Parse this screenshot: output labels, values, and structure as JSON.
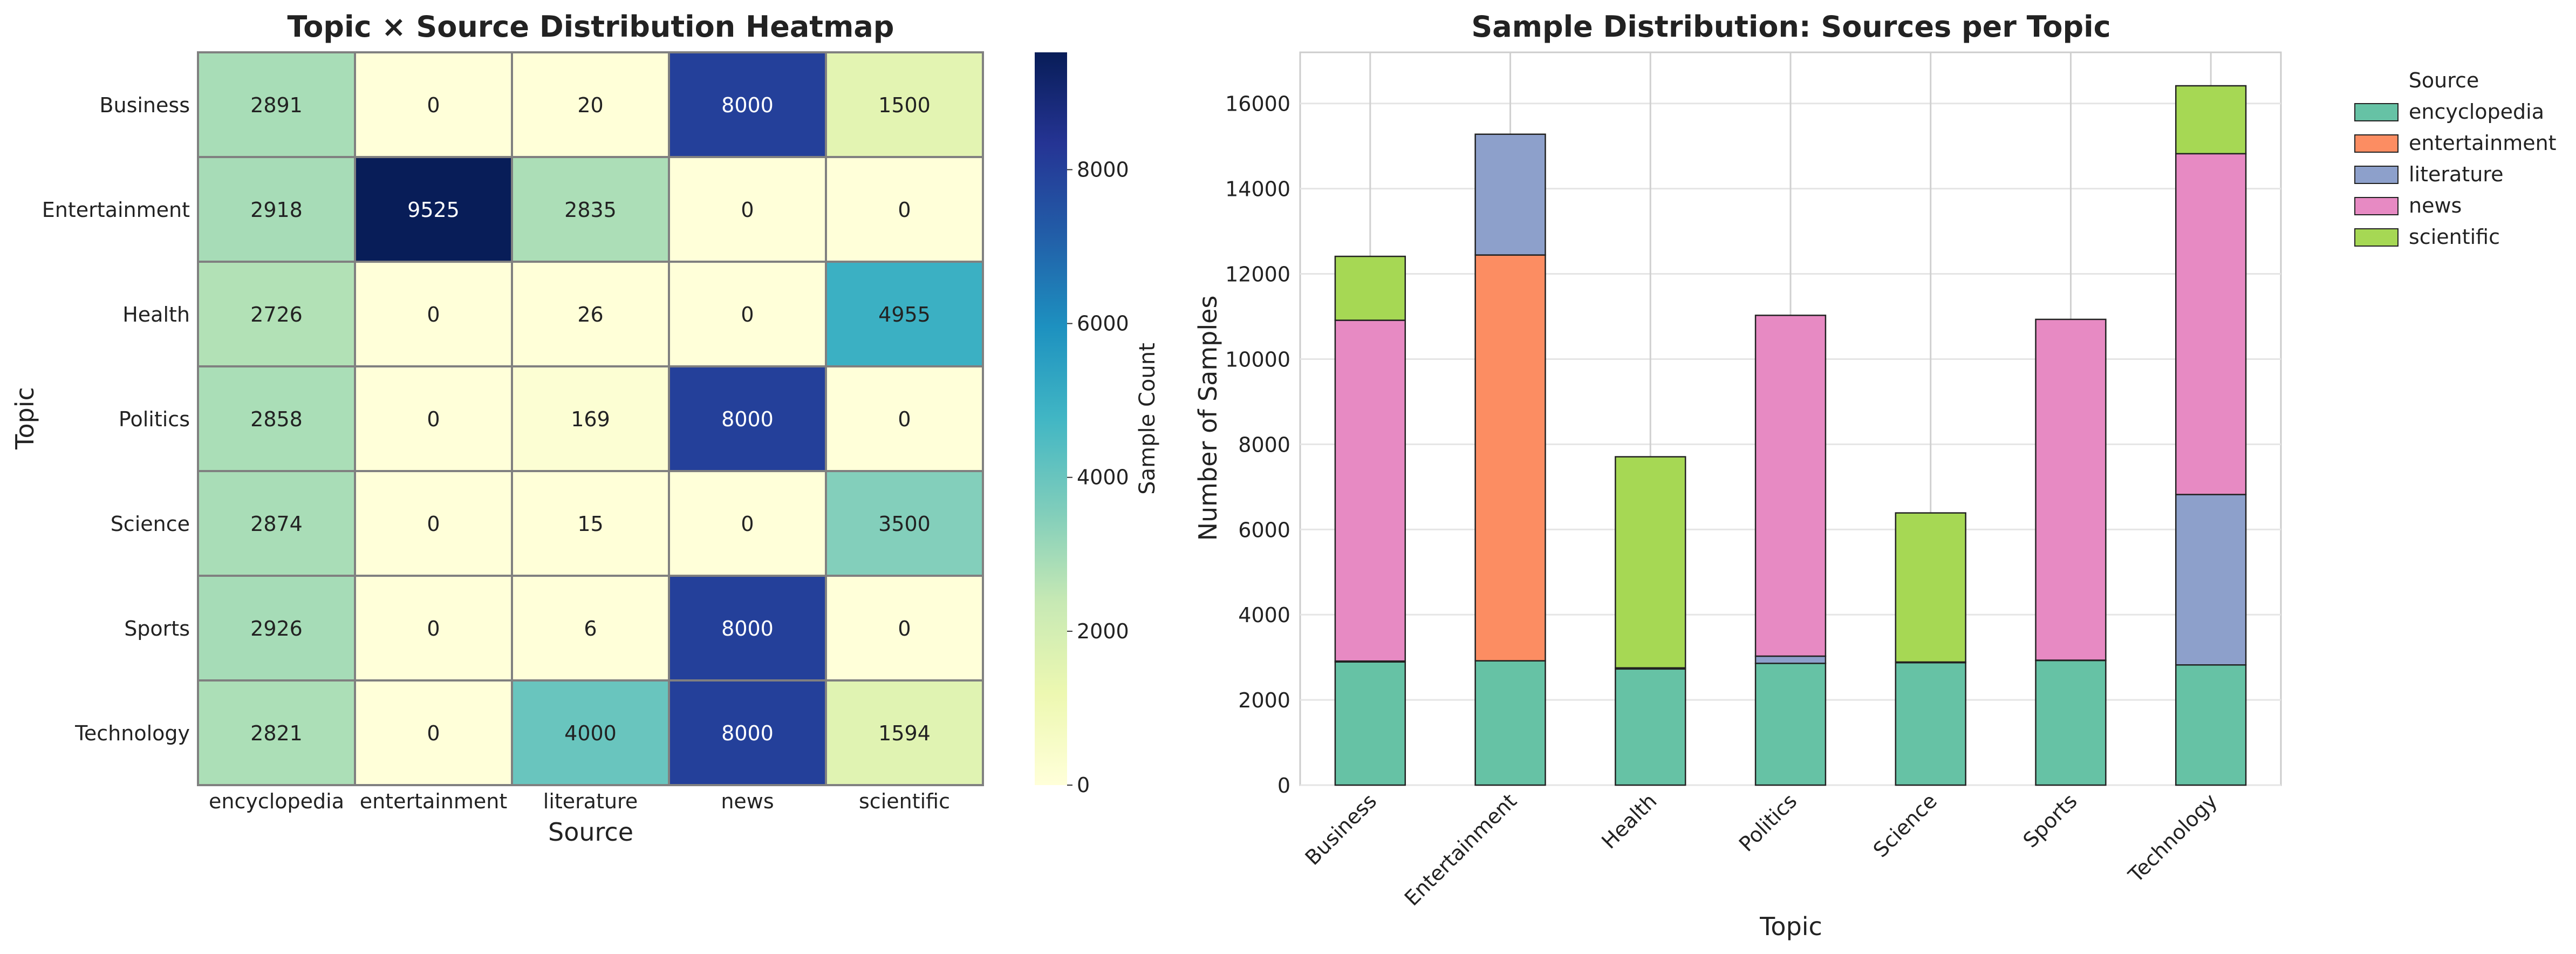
{
  "chart_data": [
    {
      "type": "heatmap",
      "title": "Topic × Source Distribution Heatmap",
      "xlabel": "Source",
      "ylabel": "Topic",
      "x_categories": [
        "encyclopedia",
        "entertainment",
        "literature",
        "news",
        "scientific"
      ],
      "y_categories": [
        "Business",
        "Entertainment",
        "Health",
        "Politics",
        "Science",
        "Sports",
        "Technology"
      ],
      "values": [
        [
          2891,
          0,
          20,
          8000,
          1500
        ],
        [
          2918,
          9525,
          2835,
          0,
          0
        ],
        [
          2726,
          0,
          26,
          0,
          4955
        ],
        [
          2858,
          0,
          169,
          8000,
          0
        ],
        [
          2874,
          0,
          15,
          0,
          3500
        ],
        [
          2926,
          0,
          6,
          8000,
          0
        ],
        [
          2821,
          0,
          4000,
          8000,
          1594
        ]
      ],
      "colorbar": {
        "label": "Sample Count",
        "range": [
          0,
          9525
        ],
        "ticks": [
          0,
          2000,
          4000,
          6000,
          8000
        ],
        "colormap": "YlGnBu"
      }
    },
    {
      "type": "bar",
      "stacked": true,
      "title": "Sample Distribution: Sources per Topic",
      "xlabel": "Topic",
      "ylabel": "Number of Samples",
      "categories": [
        "Business",
        "Entertainment",
        "Health",
        "Politics",
        "Science",
        "Sports",
        "Technology"
      ],
      "ylim": [
        0,
        17200
      ],
      "yticks": [
        0,
        2000,
        4000,
        6000,
        8000,
        10000,
        12000,
        14000,
        16000
      ],
      "grid": true,
      "legend": {
        "title": "Source",
        "placement": "outside-top-right"
      },
      "series": [
        {
          "name": "encyclopedia",
          "color": "#66c2a5",
          "values": [
            2891,
            2918,
            2726,
            2858,
            2874,
            2926,
            2821
          ]
        },
        {
          "name": "entertainment",
          "color": "#fc8d62",
          "values": [
            0,
            9525,
            0,
            0,
            0,
            0,
            0
          ]
        },
        {
          "name": "literature",
          "color": "#8da0cb",
          "values": [
            20,
            2835,
            26,
            169,
            15,
            6,
            4000
          ]
        },
        {
          "name": "news",
          "color": "#e78ac3",
          "values": [
            8000,
            0,
            0,
            8000,
            0,
            8000,
            8000
          ]
        },
        {
          "name": "scientific",
          "color": "#a6d854",
          "values": [
            1500,
            0,
            4955,
            0,
            3500,
            0,
            1594
          ]
        }
      ]
    }
  ]
}
